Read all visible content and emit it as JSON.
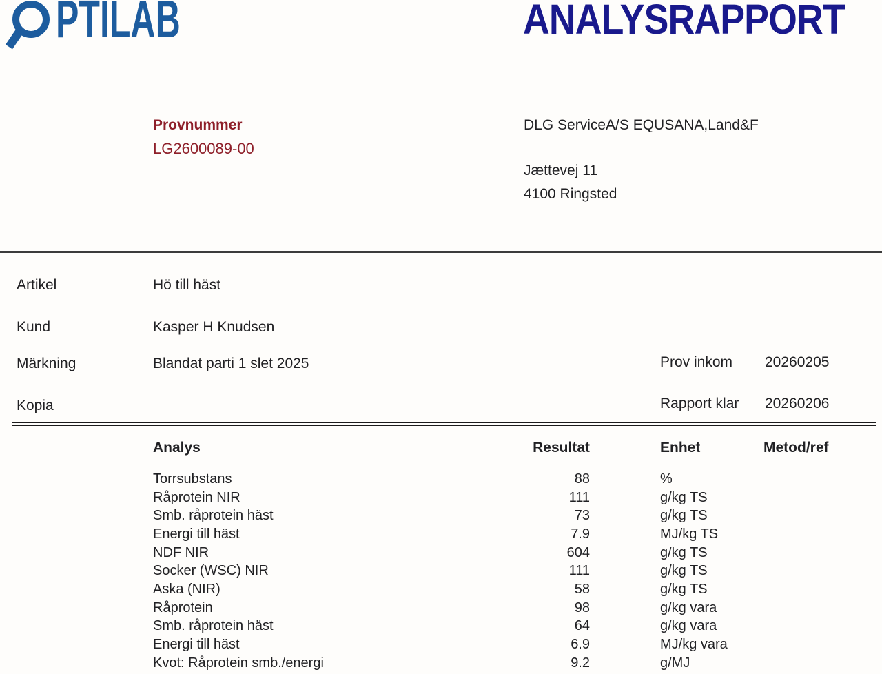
{
  "header": {
    "logo": {
      "name": "OPTILAB",
      "glyphs_after_glass": "PTILAB",
      "color": "#1d5c9e"
    },
    "title": "ANALYSRAPPORT",
    "title_color": "#19198c"
  },
  "sample": {
    "label": "Provnummer",
    "number": "LG2600089-00",
    "color": "#8e1f29"
  },
  "recipient": {
    "name": "DLG ServiceA/S EQUSANA,Land&F",
    "street": "Jættevej 11",
    "city": "4100 Ringsted"
  },
  "fields": [
    {
      "label": "Artikel",
      "value": "Hö till häst"
    },
    {
      "label": "Kund",
      "value": "Kasper H Knudsen"
    },
    {
      "label": "Märkning",
      "value": "Blandat parti 1 slet 2025"
    },
    {
      "label": "Kopia",
      "value": ""
    }
  ],
  "meta": [
    {
      "label": "Prov inkom",
      "value": "20260205"
    },
    {
      "label": "Rapport klar",
      "value": "20260206"
    }
  ],
  "table": {
    "headers": [
      "Analys",
      "Resultat",
      "Enhet",
      "Metod/ref"
    ],
    "rows": [
      {
        "analys": "Torrsubstans",
        "resultat": "88",
        "enhet": "%",
        "metod": ""
      },
      {
        "analys": "Råprotein NIR",
        "resultat": "111",
        "enhet": "g/kg TS",
        "metod": ""
      },
      {
        "analys": "Smb. råprotein häst",
        "resultat": "73",
        "enhet": "g/kg TS",
        "metod": ""
      },
      {
        "analys": "Energi till häst",
        "resultat": "7.9",
        "enhet": "MJ/kg TS",
        "metod": ""
      },
      {
        "analys": "NDF NIR",
        "resultat": "604",
        "enhet": "g/kg TS",
        "metod": ""
      },
      {
        "analys": "Socker (WSC) NIR",
        "resultat": "111",
        "enhet": "g/kg TS",
        "metod": ""
      },
      {
        "analys": "Aska (NIR)",
        "resultat": "58",
        "enhet": "g/kg TS",
        "metod": ""
      },
      {
        "analys": "Råprotein",
        "resultat": "98",
        "enhet": "g/kg vara",
        "metod": ""
      },
      {
        "analys": "Smb. råprotein häst",
        "resultat": "64",
        "enhet": "g/kg vara",
        "metod": ""
      },
      {
        "analys": "Energi till häst",
        "resultat": "6.9",
        "enhet": "MJ/kg vara",
        "metod": ""
      },
      {
        "analys": "Kvot: Råprotein smb./energi",
        "resultat": "9.2",
        "enhet": "g/MJ",
        "metod": ""
      }
    ]
  }
}
